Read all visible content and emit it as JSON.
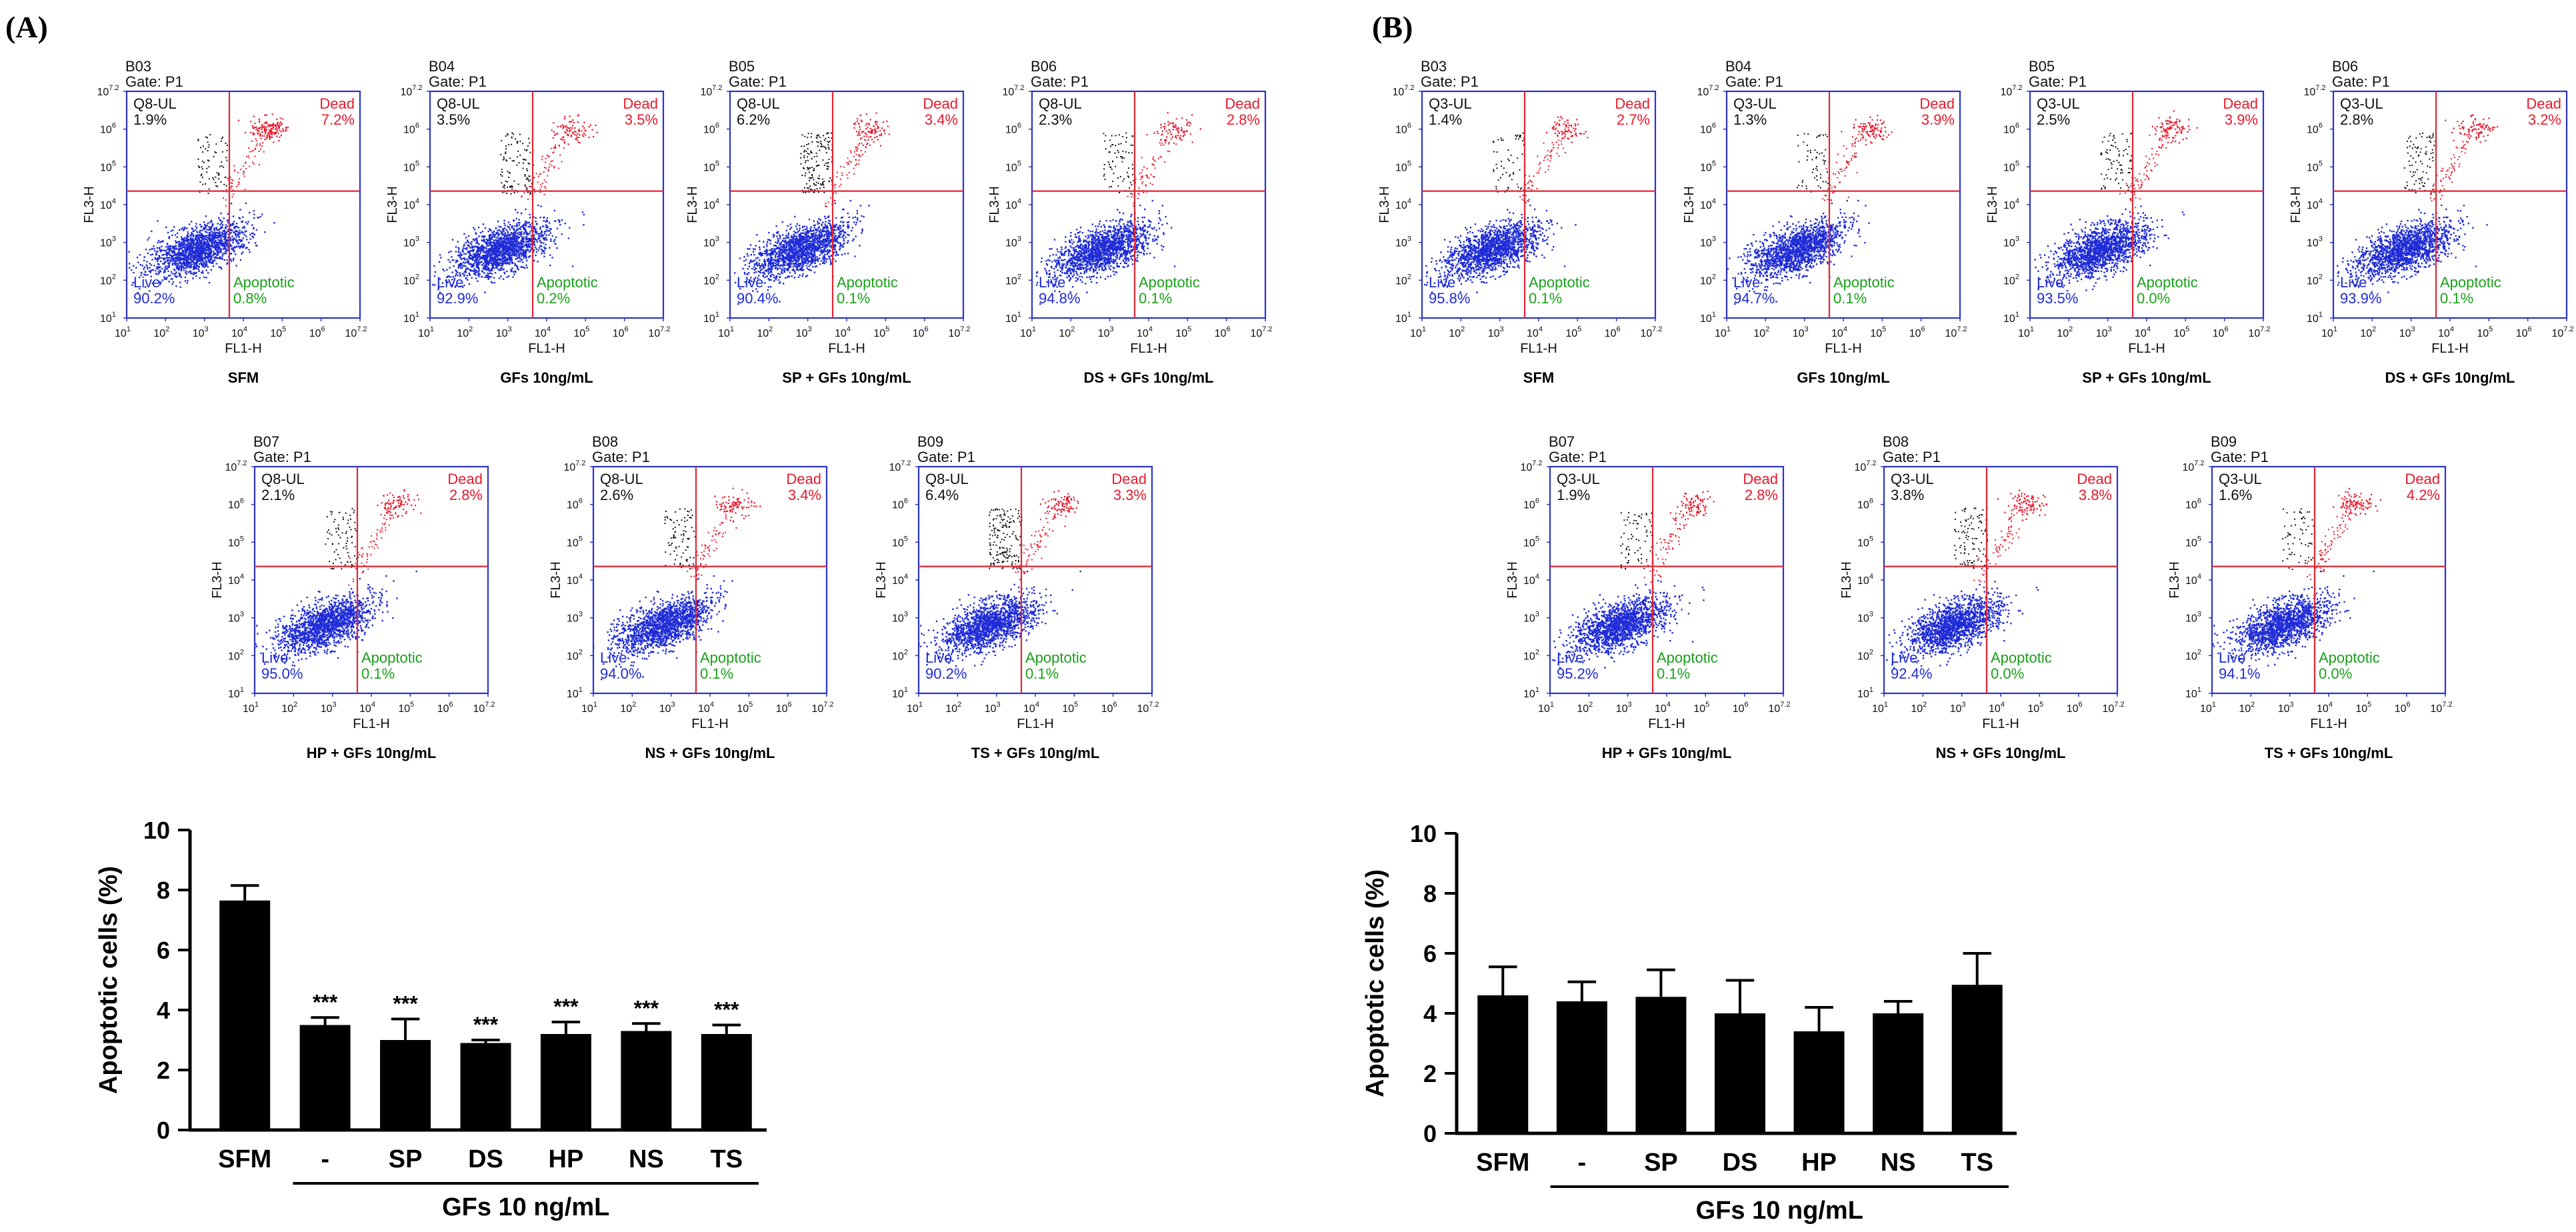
{
  "colors": {
    "live": "#1e2bd6",
    "dead": "#e8192c",
    "apoptotic": "#1aa01a",
    "frame": "#2a33c8",
    "gate_line": "#e02633",
    "q_ul": "#111111",
    "bar": "#000000"
  },
  "flow_axes": {
    "x_label": "FL1-H",
    "y_label": "FL3-H",
    "tick_base": "10",
    "tick_exponents": [
      "1",
      "2",
      "3",
      "4",
      "5",
      "6",
      "7.2"
    ]
  },
  "panels": [
    {
      "label": "(A)",
      "flow_plots": [
        {
          "id": "B03",
          "gate": "Gate: P1",
          "q_ul_name": "Q8-UL",
          "q_ul_pct": "1.9%",
          "dead_name": "Dead",
          "dead_pct": "7.2%",
          "live_name": "Live",
          "live_pct": "90.2%",
          "apo_name": "Apoptotic",
          "apo_pct": "0.8%",
          "caption": "SFM"
        },
        {
          "id": "B04",
          "gate": "Gate: P1",
          "q_ul_name": "Q8-UL",
          "q_ul_pct": "3.5%",
          "dead_name": "Dead",
          "dead_pct": "3.5%",
          "live_name": "Live",
          "live_pct": "92.9%",
          "apo_name": "Apoptotic",
          "apo_pct": "0.2%",
          "caption": "GFs 10ng/mL"
        },
        {
          "id": "B05",
          "gate": "Gate: P1",
          "q_ul_name": "Q8-UL",
          "q_ul_pct": "6.2%",
          "dead_name": "Dead",
          "dead_pct": "3.4%",
          "live_name": "Live",
          "live_pct": "90.4%",
          "apo_name": "Apoptotic",
          "apo_pct": "0.1%",
          "caption": "SP + GFs 10ng/mL"
        },
        {
          "id": "B06",
          "gate": "Gate: P1",
          "q_ul_name": "Q8-UL",
          "q_ul_pct": "2.3%",
          "dead_name": "Dead",
          "dead_pct": "2.8%",
          "live_name": "Live",
          "live_pct": "94.8%",
          "apo_name": "Apoptotic",
          "apo_pct": "0.1%",
          "caption": "DS + GFs 10ng/mL"
        },
        {
          "id": "B07",
          "gate": "Gate: P1",
          "q_ul_name": "Q8-UL",
          "q_ul_pct": "2.1%",
          "dead_name": "Dead",
          "dead_pct": "2.8%",
          "live_name": "Live",
          "live_pct": "95.0%",
          "apo_name": "Apoptotic",
          "apo_pct": "0.1%",
          "caption": "HP + GFs 10ng/mL"
        },
        {
          "id": "B08",
          "gate": "Gate: P1",
          "q_ul_name": "Q8-UL",
          "q_ul_pct": "2.6%",
          "dead_name": "Dead",
          "dead_pct": "3.4%",
          "live_name": "Live",
          "live_pct": "94.0%",
          "apo_name": "Apoptotic",
          "apo_pct": "0.1%",
          "caption": "NS + GFs 10ng/mL"
        },
        {
          "id": "B09",
          "gate": "Gate: P1",
          "q_ul_name": "Q8-UL",
          "q_ul_pct": "6.4%",
          "dead_name": "Dead",
          "dead_pct": "3.3%",
          "live_name": "Live",
          "live_pct": "90.2%",
          "apo_name": "Apoptotic",
          "apo_pct": "0.1%",
          "caption": "TS + GFs 10ng/mL"
        }
      ]
    },
    {
      "label": "(B)",
      "flow_plots": [
        {
          "id": "B03",
          "gate": "Gate: P1",
          "q_ul_name": "Q3-UL",
          "q_ul_pct": "1.4%",
          "dead_name": "Dead",
          "dead_pct": "2.7%",
          "live_name": "Live",
          "live_pct": "95.8%",
          "apo_name": "Apoptotic",
          "apo_pct": "0.1%",
          "caption": "SFM"
        },
        {
          "id": "B04",
          "gate": "Gate: P1",
          "q_ul_name": "Q3-UL",
          "q_ul_pct": "1.3%",
          "dead_name": "Dead",
          "dead_pct": "3.9%",
          "live_name": "Live",
          "live_pct": "94.7%",
          "apo_name": "Apoptotic",
          "apo_pct": "0.1%",
          "caption": "GFs 10ng/mL"
        },
        {
          "id": "B05",
          "gate": "Gate: P1",
          "q_ul_name": "Q3-UL",
          "q_ul_pct": "2.5%",
          "dead_name": "Dead",
          "dead_pct": "3.9%",
          "live_name": "Live",
          "live_pct": "93.5%",
          "apo_name": "Apoptotic",
          "apo_pct": "0.0%",
          "caption": "SP + GFs 10ng/mL"
        },
        {
          "id": "B06",
          "gate": "Gate: P1",
          "q_ul_name": "Q3-UL",
          "q_ul_pct": "2.8%",
          "dead_name": "Dead",
          "dead_pct": "3.2%",
          "live_name": "Live",
          "live_pct": "93.9%",
          "apo_name": "Apoptotic",
          "apo_pct": "0.1%",
          "caption": "DS + GFs 10ng/mL"
        },
        {
          "id": "B07",
          "gate": "Gate: P1",
          "q_ul_name": "Q3-UL",
          "q_ul_pct": "1.9%",
          "dead_name": "Dead",
          "dead_pct": "2.8%",
          "live_name": "Live",
          "live_pct": "95.2%",
          "apo_name": "Apoptotic",
          "apo_pct": "0.1%",
          "caption": "HP + GFs 10ng/mL"
        },
        {
          "id": "B08",
          "gate": "Gate: P1",
          "q_ul_name": "Q3-UL",
          "q_ul_pct": "3.8%",
          "dead_name": "Dead",
          "dead_pct": "3.8%",
          "live_name": "Live",
          "live_pct": "92.4%",
          "apo_name": "Apoptotic",
          "apo_pct": "0.0%",
          "caption": "NS + GFs 10ng/mL"
        },
        {
          "id": "B09",
          "gate": "Gate: P1",
          "q_ul_name": "Q3-UL",
          "q_ul_pct": "1.6%",
          "dead_name": "Dead",
          "dead_pct": "4.2%",
          "live_name": "Live",
          "live_pct": "94.1%",
          "apo_name": "Apoptotic",
          "apo_pct": "0.0%",
          "caption": "TS + GFs 10ng/mL"
        }
      ]
    }
  ],
  "chart_data": [
    {
      "type": "bar",
      "panel": "(A)",
      "categories": [
        "SFM",
        "-",
        "SP",
        "DS",
        "HP",
        "NS",
        "TS"
      ],
      "values": [
        7.65,
        3.5,
        3.0,
        2.9,
        3.2,
        3.3,
        3.2
      ],
      "errors": [
        0.5,
        0.25,
        0.7,
        0.1,
        0.4,
        0.25,
        0.3
      ],
      "significance": [
        "",
        "***",
        "***",
        "***",
        "***",
        "***",
        "***"
      ],
      "ylabel": "Apoptotic cells (%)",
      "ylim": [
        0,
        10
      ],
      "yticks": [
        0,
        2,
        4,
        6,
        8,
        10
      ],
      "group_label": "GFs 10 ng/mL",
      "grid": false
    },
    {
      "type": "bar",
      "panel": "(B)",
      "categories": [
        "SFM",
        "-",
        "SP",
        "DS",
        "HP",
        "NS",
        "TS"
      ],
      "values": [
        4.6,
        4.4,
        4.55,
        4.0,
        3.4,
        4.0,
        4.95
      ],
      "errors": [
        0.95,
        0.65,
        0.9,
        1.1,
        0.8,
        0.4,
        1.05
      ],
      "significance": [
        "",
        "",
        "",
        "",
        "",
        "",
        ""
      ],
      "ylabel": "Apoptotic cells (%)",
      "ylim": [
        0,
        10
      ],
      "yticks": [
        0,
        2,
        4,
        6,
        8,
        10
      ],
      "group_label": "GFs 10 ng/mL",
      "grid": false
    }
  ]
}
